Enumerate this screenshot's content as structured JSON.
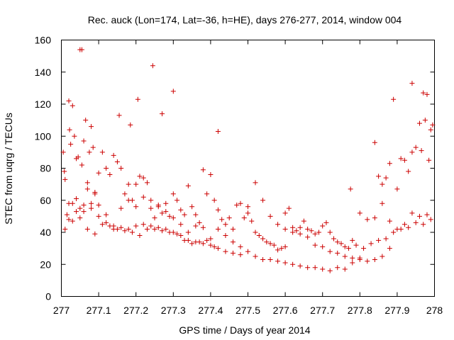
{
  "chart_data": {
    "type": "scatter",
    "title": "Rec. auck (Lon=174, Lat=-36, h=HE), days 276-277, 2014, window 004",
    "xlabel": "GPS time / Days of year 2014",
    "ylabel": "STEC from uqrg / TECUs",
    "xlim": [
      277,
      278
    ],
    "ylim": [
      0,
      160
    ],
    "xticks": [
      "277",
      "277.1",
      "277.2",
      "277.3",
      "277.4",
      "277.5",
      "277.6",
      "277.7",
      "277.8",
      "277.9",
      "278"
    ],
    "yticks": [
      "0",
      "20",
      "40",
      "60",
      "80",
      "100",
      "120",
      "140",
      "160"
    ],
    "grid": false,
    "marker": "+",
    "point_color": "#cc0000",
    "series": [
      {
        "x": [
          277.005,
          277.008,
          277.01,
          277.015,
          277.02,
          277.022,
          277.025,
          277.03,
          277.035,
          277.04,
          277.045,
          277.05,
          277.055,
          277.06,
          277.065,
          277.07,
          277.075,
          277.08,
          277.085,
          277.09,
          277.01,
          277.02,
          277.03,
          277.04,
          277.05,
          277.06,
          277.07,
          277.08,
          277.09,
          277.1,
          277.11,
          277.12,
          277.13,
          277.14,
          277.15,
          277.16,
          277.17,
          277.18,
          277.19,
          277.2,
          277.21,
          277.22,
          277.23,
          277.24,
          277.25,
          277.26,
          277.27,
          277.28,
          277.29,
          277.3,
          277.31,
          277.32,
          277.33,
          277.34,
          277.35,
          277.36,
          277.37,
          277.38,
          277.39,
          277.4,
          277.03,
          277.05,
          277.07,
          277.09,
          277.11,
          277.13,
          277.15,
          277.17,
          277.19,
          277.21,
          277.23,
          277.25,
          277.27,
          277.29,
          277.31,
          277.33,
          277.35,
          277.37,
          277.39,
          277.41,
          277.02,
          277.04,
          277.06,
          277.08,
          277.1,
          277.12,
          277.14,
          277.16,
          277.18,
          277.2,
          277.22,
          277.24,
          277.26,
          277.28,
          277.3,
          277.32,
          277.34,
          277.36,
          277.38,
          277.4,
          277.1,
          277.12,
          277.14,
          277.16,
          277.18,
          277.2,
          277.22,
          277.24,
          277.26,
          277.28,
          277.3,
          277.32,
          277.34,
          277.36,
          277.38,
          277.4,
          277.42,
          277.44,
          277.46,
          277.48,
          277.41,
          277.42,
          277.43,
          277.44,
          277.45,
          277.46,
          277.47,
          277.48,
          277.49,
          277.5,
          277.51,
          277.52,
          277.53,
          277.54,
          277.55,
          277.56,
          277.57,
          277.58,
          277.59,
          277.6,
          277.42,
          277.44,
          277.46,
          277.48,
          277.5,
          277.52,
          277.54,
          277.56,
          277.58,
          277.6,
          277.62,
          277.64,
          277.66,
          277.68,
          277.7,
          277.72,
          277.74,
          277.76,
          277.78,
          277.8,
          277.5,
          277.52,
          277.54,
          277.56,
          277.58,
          277.6,
          277.62,
          277.64,
          277.66,
          277.68,
          277.7,
          277.72,
          277.74,
          277.76,
          277.78,
          277.8,
          277.82,
          277.84,
          277.86,
          277.88,
          277.6,
          277.61,
          277.62,
          277.63,
          277.64,
          277.65,
          277.66,
          277.67,
          277.68,
          277.69,
          277.7,
          277.71,
          277.72,
          277.73,
          277.74,
          277.75,
          277.76,
          277.77,
          277.78,
          277.79,
          277.8,
          277.82,
          277.84,
          277.86,
          277.88,
          277.9,
          277.92,
          277.94,
          277.96,
          277.98,
          277.81,
          277.83,
          277.85,
          277.87,
          277.89,
          277.91,
          277.93,
          277.95,
          277.97,
          277.99,
          277.84,
          277.85,
          277.86,
          277.87,
          277.88,
          277.89,
          277.9,
          277.91,
          277.92,
          277.93,
          277.94,
          277.95,
          277.96,
          277.97,
          277.98,
          277.985,
          277.99,
          277.995,
          277.975,
          277.965,
          277.055,
          277.245,
          277.27,
          277.205,
          277.185,
          277.155,
          277.3,
          277.42,
          277.775,
          277.94
        ],
        "y": [
          90,
          78,
          73,
          51,
          122,
          104,
          95,
          119,
          100,
          86,
          87,
          154,
          82,
          97,
          110,
          71,
          90,
          106,
          93,
          65,
          42,
          48,
          58,
          61,
          55,
          53,
          67,
          58,
          64,
          77,
          90,
          80,
          76,
          88,
          84,
          80,
          64,
          70,
          60,
          70,
          75,
          74,
          71,
          55,
          49,
          57,
          52,
          53,
          50,
          64,
          60,
          54,
          51,
          69,
          56,
          51,
          46,
          79,
          64,
          76,
          47,
          49,
          42,
          39,
          45,
          44,
          42,
          41,
          40,
          38,
          42,
          42,
          41,
          40,
          39,
          35,
          33,
          34,
          35,
          31,
          58,
          53,
          57,
          55,
          57,
          51,
          42,
          55,
          60,
          56,
          62,
          60,
          56,
          58,
          49,
          45,
          40,
          44,
          43,
          36,
          50,
          46,
          44,
          43,
          42,
          44,
          45,
          44,
          43,
          42,
          40,
          38,
          35,
          34,
          33,
          32,
          30,
          28,
          27,
          26,
          60,
          54,
          48,
          45,
          49,
          42,
          57,
          58,
          49,
          52,
          47,
          40,
          38,
          36,
          34,
          33,
          32,
          29,
          30,
          31,
          42,
          38,
          34,
          31,
          28,
          25,
          23,
          23,
          22,
          21,
          20,
          19,
          18,
          18,
          17,
          16,
          18,
          17,
          21,
          24,
          56,
          71,
          60,
          50,
          45,
          42,
          40,
          39,
          37,
          32,
          31,
          28,
          27,
          25,
          24,
          23,
          22,
          23,
          25,
          30,
          52,
          55,
          43,
          41,
          43,
          47,
          42,
          41,
          39,
          40,
          44,
          46,
          40,
          36,
          34,
          33,
          31,
          30,
          35,
          32,
          52,
          48,
          49,
          58,
          47,
          42,
          45,
          52,
          50,
          51,
          30,
          33,
          35,
          36,
          40,
          42,
          43,
          46,
          45,
          48,
          96,
          75,
          70,
          74,
          83,
          123,
          67,
          86,
          85,
          78,
          90,
          93,
          108,
          127,
          126,
          85,
          104,
          107,
          110,
          91,
          154,
          144,
          114,
          123,
          107,
          113,
          128,
          103,
          67,
          133
        ]
      }
    ]
  }
}
